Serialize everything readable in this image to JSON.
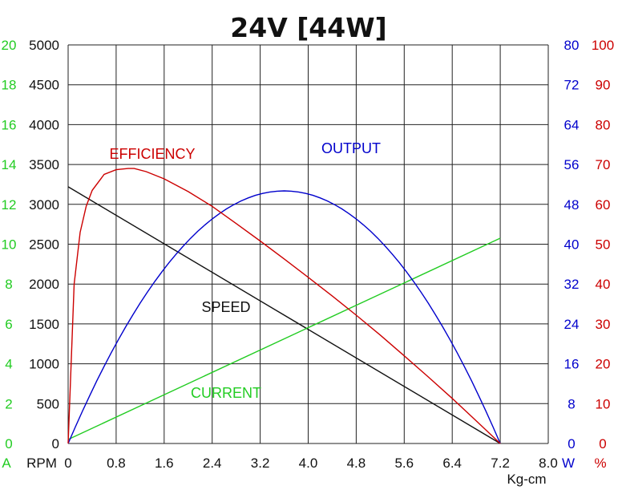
{
  "chart_data": {
    "type": "line",
    "title": "24V [44W]",
    "xlabel": "Kg-cm",
    "x_unit_labels": {
      "current": "A",
      "speed": "RPM",
      "output": "W",
      "efficiency": "%"
    },
    "xlim": [
      0,
      8.0
    ],
    "x_ticks": [
      "0",
      "0.8",
      "1.6",
      "2.4",
      "3.2",
      "4.0",
      "4.8",
      "5.6",
      "6.4",
      "7.2",
      "8.0"
    ],
    "axes": {
      "speed": {
        "range": [
          0,
          5000
        ],
        "ticks": [
          "0",
          "500",
          "1000",
          "1500",
          "2000",
          "2500",
          "3000",
          "3500",
          "4000",
          "4500",
          "5000"
        ],
        "color": "#111111"
      },
      "current": {
        "range": [
          0,
          20
        ],
        "ticks": [
          "0",
          "2",
          "4",
          "6",
          "8",
          "10",
          "12",
          "14",
          "16",
          "18",
          "20"
        ],
        "color": "#22cc22"
      },
      "output": {
        "range": [
          0,
          80
        ],
        "ticks": [
          "0",
          "8",
          "16",
          "24",
          "32",
          "40",
          "48",
          "56",
          "64",
          "72",
          "80"
        ],
        "color": "#0000cc"
      },
      "efficiency": {
        "range": [
          0,
          100
        ],
        "ticks": [
          "0",
          "10",
          "20",
          "30",
          "40",
          "50",
          "60",
          "70",
          "80",
          "90",
          "100"
        ],
        "color": "#cc0000"
      }
    },
    "grid": true,
    "series": [
      {
        "name": "SPEED",
        "axis": "speed",
        "color": "#111111",
        "x": [
          0,
          7.2
        ],
        "y": [
          3220,
          0
        ]
      },
      {
        "name": "CURRENT",
        "axis": "current",
        "color": "#22cc22",
        "x": [
          0,
          7.2
        ],
        "y": [
          0.2,
          10.3
        ]
      },
      {
        "name": "OUTPUT",
        "axis": "output",
        "color": "#0000cc",
        "x": [
          0,
          0.4,
          0.8,
          1.2,
          1.6,
          2.0,
          2.4,
          2.8,
          3.2,
          3.6,
          4.0,
          4.4,
          4.8,
          5.2,
          5.6,
          6.0,
          6.4,
          6.8,
          7.2
        ],
        "y": [
          0,
          13.2,
          24.3,
          33.5,
          40.6,
          45.7,
          48.9,
          50.3,
          49.8,
          50.7,
          48.0,
          45.7,
          40.6,
          36.0,
          29.9,
          22.8,
          14.7,
          8.0,
          0
        ]
      },
      {
        "name": "EFFICIENCY",
        "axis": "efficiency",
        "color": "#cc0000",
        "x": [
          0,
          0.1,
          0.2,
          0.3,
          0.4,
          0.6,
          0.8,
          1.0,
          1.1,
          1.3,
          1.6,
          2.0,
          2.4,
          2.8,
          3.2,
          3.6,
          4.0,
          4.4,
          4.8,
          5.2,
          5.6,
          6.0,
          6.4,
          6.8,
          7.2
        ],
        "y": [
          0,
          40,
          53,
          59.5,
          63.5,
          67.5,
          68.7,
          69,
          69,
          68.2,
          66.4,
          63.2,
          59.5,
          55.2,
          50.8,
          46.3,
          41.7,
          37,
          32.2,
          27.2,
          22,
          16.7,
          11.3,
          5.7,
          0
        ]
      }
    ],
    "annotations": [
      {
        "text": "EFFICIENCY",
        "color": "#cc0000"
      },
      {
        "text": "OUTPUT",
        "color": "#0000cc"
      },
      {
        "text": "SPEED",
        "color": "#111111"
      },
      {
        "text": "CURRENT",
        "color": "#22cc22"
      }
    ]
  }
}
